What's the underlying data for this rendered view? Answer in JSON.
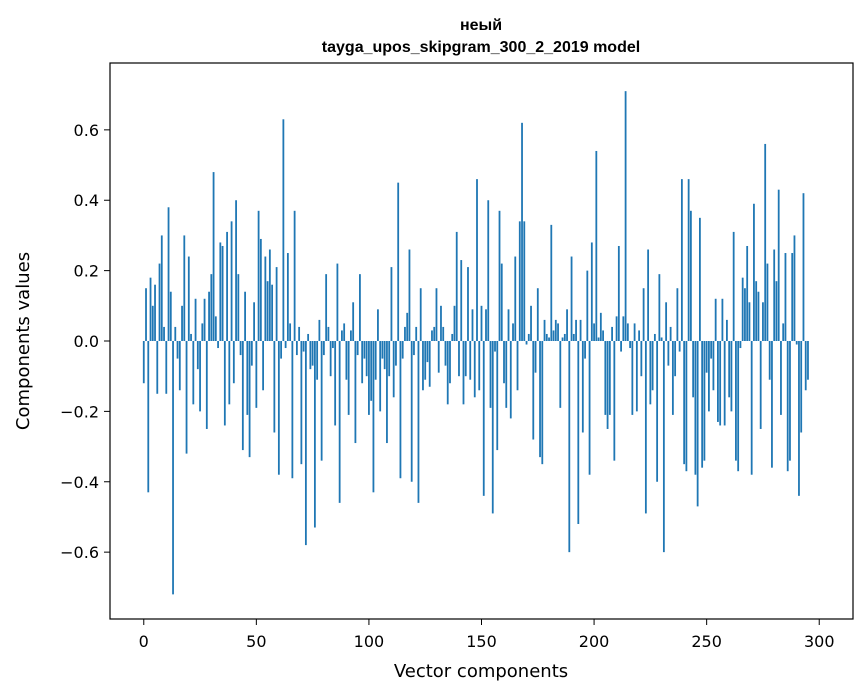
{
  "chart_data": {
    "type": "bar",
    "title_line1": "неый",
    "title_line2": "tayga_upos_skipgram_300_2_2019 model",
    "xlabel": "Vector components",
    "ylabel": "Components values",
    "xlim": [
      -15,
      315
    ],
    "ylim": [
      -0.79,
      0.79
    ],
    "xticks": [
      0,
      50,
      100,
      150,
      200,
      250,
      300
    ],
    "xtick_labels": [
      "0",
      "50",
      "100",
      "150",
      "200",
      "250",
      "300"
    ],
    "yticks": [
      -0.6,
      -0.4,
      -0.2,
      0.0,
      0.2,
      0.4,
      0.6
    ],
    "ytick_labels": [
      "−0.6",
      "−0.4",
      "−0.2",
      "0.0",
      "0.2",
      "0.4",
      "0.6"
    ],
    "bar_color": "#1f77b4",
    "values": [
      -0.12,
      0.15,
      -0.43,
      0.18,
      0.1,
      0.16,
      -0.15,
      0.22,
      0.3,
      0.04,
      -0.15,
      0.38,
      0.14,
      -0.72,
      0.04,
      -0.05,
      -0.14,
      0.1,
      0.3,
      -0.32,
      0.24,
      0.02,
      -0.18,
      0.12,
      -0.08,
      -0.2,
      0.05,
      0.12,
      -0.25,
      0.14,
      0.19,
      0.48,
      0.07,
      -0.02,
      0.28,
      0.27,
      -0.24,
      0.31,
      -0.18,
      0.34,
      -0.12,
      0.4,
      0.19,
      -0.04,
      -0.31,
      0.14,
      -0.21,
      -0.33,
      -0.07,
      0.11,
      -0.19,
      0.37,
      0.29,
      -0.14,
      0.24,
      0.17,
      0.26,
      0.16,
      -0.26,
      0.21,
      -0.38,
      -0.05,
      0.63,
      -0.02,
      0.25,
      0.05,
      -0.39,
      0.37,
      -0.04,
      0.04,
      -0.35,
      -0.03,
      -0.58,
      0.02,
      -0.08,
      -0.07,
      -0.53,
      -0.11,
      0.06,
      -0.34,
      -0.04,
      0.19,
      0.04,
      -0.1,
      -0.02,
      -0.24,
      0.22,
      -0.46,
      0.03,
      0.05,
      -0.11,
      -0.21,
      0.03,
      0.11,
      -0.29,
      -0.04,
      0.19,
      -0.12,
      -0.05,
      -0.1,
      -0.21,
      -0.17,
      -0.43,
      -0.11,
      0.09,
      -0.2,
      -0.05,
      -0.08,
      -0.29,
      -0.1,
      0.21,
      -0.16,
      -0.07,
      0.45,
      -0.39,
      -0.05,
      0.04,
      0.08,
      0.26,
      -0.4,
      -0.04,
      0.04,
      -0.46,
      0.15,
      -0.14,
      -0.11,
      -0.06,
      -0.13,
      0.03,
      0.04,
      0.15,
      -0.09,
      0.1,
      0.04,
      -0.07,
      -0.18,
      -0.12,
      0.02,
      0.1,
      0.31,
      -0.1,
      0.23,
      -0.18,
      -0.1,
      0.21,
      -0.11,
      0.09,
      -0.16,
      0.46,
      -0.14,
      0.1,
      -0.44,
      0.09,
      0.4,
      -0.19,
      -0.49,
      -0.03,
      -0.31,
      0.37,
      0.22,
      -0.12,
      -0.19,
      0.09,
      -0.22,
      0.05,
      0.24,
      -0.14,
      0.34,
      0.62,
      0.34,
      -0.01,
      0.02,
      0.1,
      -0.28,
      -0.09,
      0.15,
      -0.33,
      -0.35,
      0.06,
      0.02,
      0.01,
      0.33,
      0.03,
      0.06,
      0.05,
      -0.19,
      0.01,
      0.02,
      0.09,
      -0.6,
      0.24,
      0.02,
      0.06,
      -0.52,
      0.06,
      -0.26,
      -0.05,
      0.2,
      -0.38,
      0.28,
      0.05,
      0.54,
      0.01,
      0.08,
      0.03,
      -0.21,
      -0.25,
      -0.21,
      0.04,
      -0.34,
      0.07,
      0.27,
      -0.03,
      0.07,
      0.71,
      0.05,
      -0.02,
      -0.21,
      0.05,
      -0.2,
      0.03,
      -0.1,
      0.15,
      -0.49,
      0.26,
      -0.18,
      -0.14,
      0.02,
      -0.4,
      0.19,
      0.01,
      -0.6,
      0.11,
      -0.07,
      0.04,
      -0.21,
      -0.1,
      0.15,
      -0.03,
      0.46,
      -0.35,
      -0.37,
      0.46,
      0.37,
      -0.16,
      -0.38,
      -0.47,
      0.35,
      -0.36,
      -0.34,
      -0.09,
      -0.2,
      -0.05,
      -0.14,
      0.12,
      -0.23,
      -0.24,
      0.12,
      -0.24,
      0.06,
      -0.16,
      -0.2,
      0.31,
      -0.34,
      -0.37,
      -0.02,
      0.18,
      0.15,
      0.27,
      0.11,
      -0.38,
      0.39,
      0.17,
      0.14,
      -0.25,
      0.11,
      0.56,
      0.22,
      -0.11,
      -0.36,
      0.26,
      0.17,
      0.43,
      -0.21,
      0.05,
      0.25,
      -0.37,
      -0.34,
      0.25,
      0.3,
      -0.01,
      -0.44,
      -0.26,
      0.42,
      -0.14,
      -0.11
    ]
  }
}
